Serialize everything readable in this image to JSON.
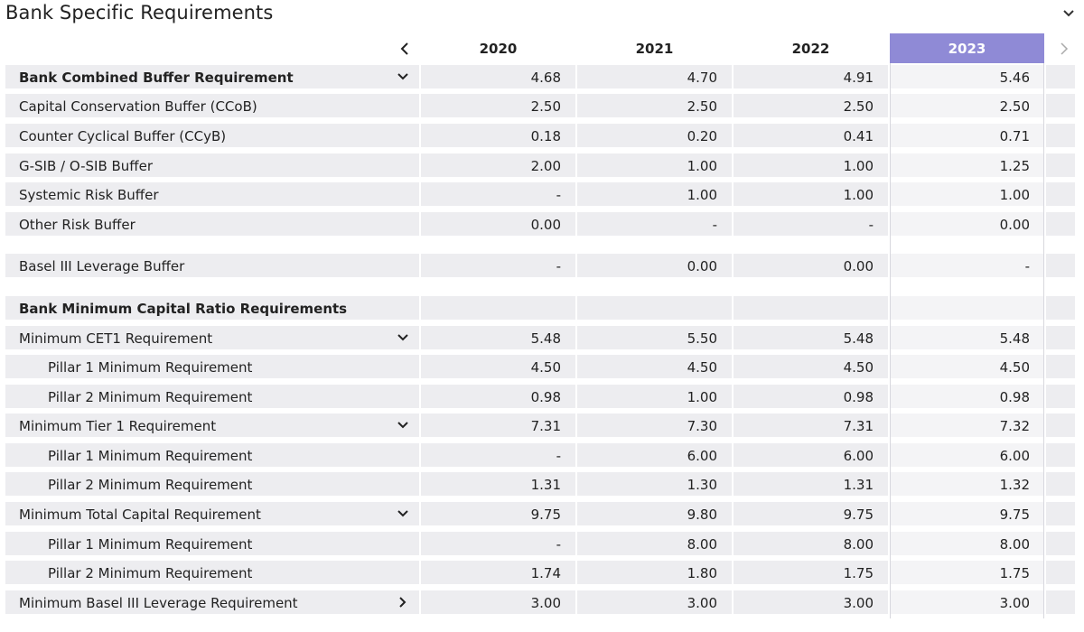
{
  "page": {
    "title": "Bank Specific Requirements"
  },
  "header": {
    "years": [
      "2020",
      "2021",
      "2022",
      "2023"
    ],
    "selected_year": "2023"
  },
  "colors": {
    "selected": "#8f8ad6",
    "row_bg": "#ededf0",
    "highlight_bg": "#f4f4f6"
  },
  "rows": [
    {
      "label": "Bank Combined Buffer Requirement",
      "bold": true,
      "indent": false,
      "toggle": "down",
      "values": [
        "4.68",
        "4.70",
        "4.91",
        "5.46"
      ]
    },
    {
      "label": "Capital Conservation Buffer (CCoB)",
      "bold": false,
      "indent": false,
      "toggle": "",
      "values": [
        "2.50",
        "2.50",
        "2.50",
        "2.50"
      ]
    },
    {
      "label": "Counter Cyclical Buffer (CCyB)",
      "bold": false,
      "indent": false,
      "toggle": "",
      "values": [
        "0.18",
        "0.20",
        "0.41",
        "0.71"
      ]
    },
    {
      "label": "G-SIB / O-SIB Buffer",
      "bold": false,
      "indent": false,
      "toggle": "",
      "values": [
        "2.00",
        "1.00",
        "1.00",
        "1.25"
      ]
    },
    {
      "label": "Systemic Risk Buffer",
      "bold": false,
      "indent": false,
      "toggle": "",
      "values": [
        "-",
        "1.00",
        "1.00",
        "1.00"
      ]
    },
    {
      "label": "Other Risk Buffer",
      "bold": false,
      "indent": false,
      "toggle": "",
      "values": [
        "0.00",
        "-",
        "-",
        "0.00"
      ]
    },
    {
      "label": "Basel III Leverage Buffer",
      "bold": false,
      "indent": false,
      "toggle": "",
      "values": [
        "-",
        "0.00",
        "0.00",
        "-"
      ]
    },
    {
      "label": "Bank Minimum Capital Ratio Requirements",
      "bold": true,
      "indent": false,
      "toggle": "",
      "values": [
        "",
        "",
        "",
        ""
      ]
    },
    {
      "label": "Minimum CET1 Requirement",
      "bold": false,
      "indent": false,
      "toggle": "down",
      "values": [
        "5.48",
        "5.50",
        "5.48",
        "5.48"
      ]
    },
    {
      "label": "Pillar 1 Minimum Requirement",
      "bold": false,
      "indent": true,
      "toggle": "",
      "values": [
        "4.50",
        "4.50",
        "4.50",
        "4.50"
      ]
    },
    {
      "label": "Pillar 2 Minimum Requirement",
      "bold": false,
      "indent": true,
      "toggle": "",
      "values": [
        "0.98",
        "1.00",
        "0.98",
        "0.98"
      ]
    },
    {
      "label": "Minimum Tier 1 Requirement",
      "bold": false,
      "indent": false,
      "toggle": "down",
      "values": [
        "7.31",
        "7.30",
        "7.31",
        "7.32"
      ]
    },
    {
      "label": "Pillar 1 Minimum Requirement",
      "bold": false,
      "indent": true,
      "toggle": "",
      "values": [
        "-",
        "6.00",
        "6.00",
        "6.00"
      ]
    },
    {
      "label": "Pillar 2 Minimum Requirement",
      "bold": false,
      "indent": true,
      "toggle": "",
      "values": [
        "1.31",
        "1.30",
        "1.31",
        "1.32"
      ]
    },
    {
      "label": "Minimum Total Capital Requirement",
      "bold": false,
      "indent": false,
      "toggle": "down",
      "values": [
        "9.75",
        "9.80",
        "9.75",
        "9.75"
      ]
    },
    {
      "label": "Pillar 1 Minimum Requirement",
      "bold": false,
      "indent": true,
      "toggle": "",
      "values": [
        "-",
        "8.00",
        "8.00",
        "8.00"
      ]
    },
    {
      "label": "Pillar 2 Minimum Requirement",
      "bold": false,
      "indent": true,
      "toggle": "",
      "values": [
        "1.74",
        "1.80",
        "1.75",
        "1.75"
      ]
    },
    {
      "label": "Minimum Basel III Leverage Requirement",
      "bold": false,
      "indent": false,
      "toggle": "right",
      "values": [
        "3.00",
        "3.00",
        "3.00",
        "3.00"
      ]
    }
  ]
}
